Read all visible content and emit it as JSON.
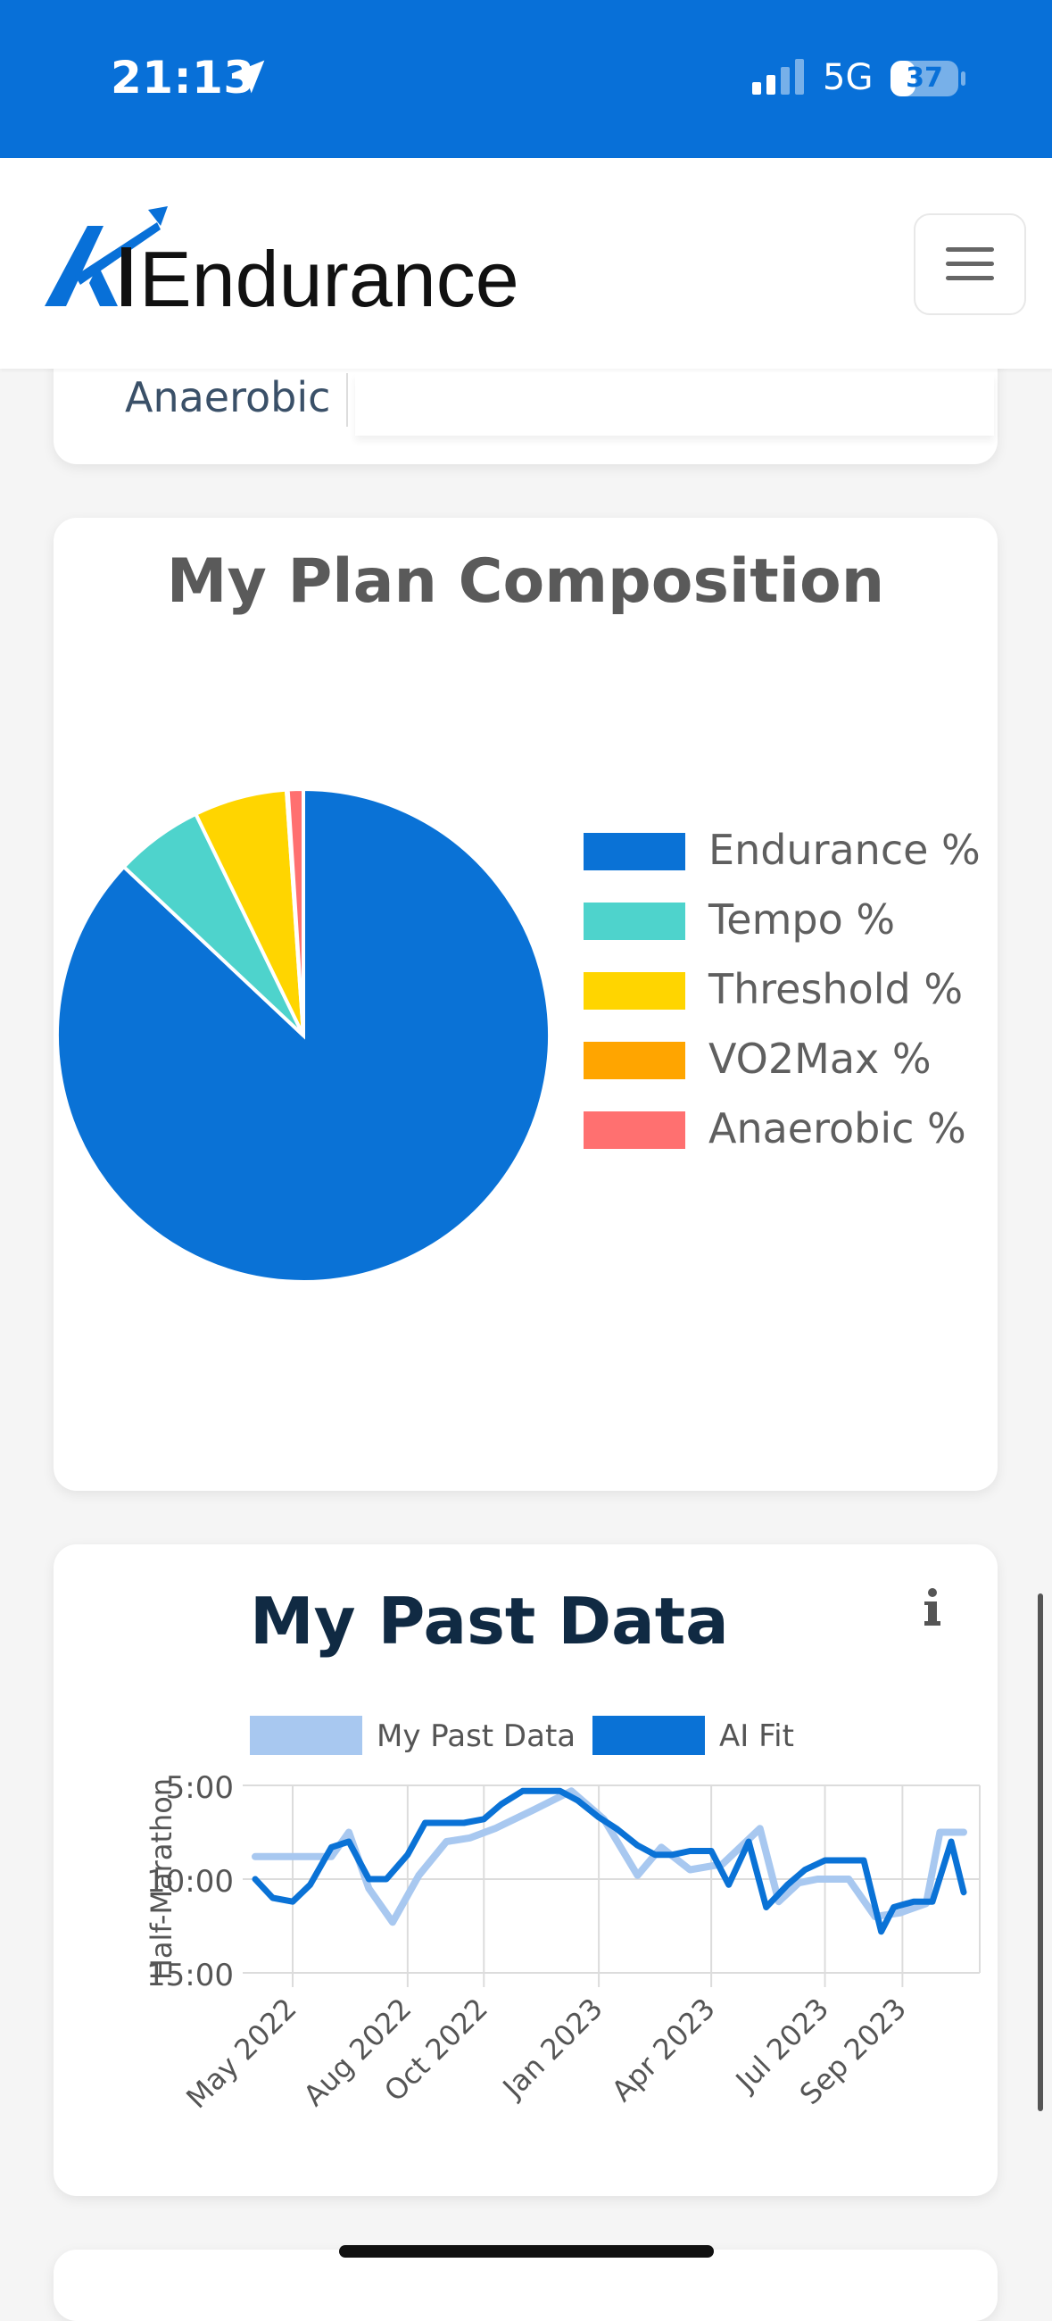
{
  "status_bar": {
    "time": "21:13",
    "network": "5G",
    "battery": "37",
    "battery_level": 0.37,
    "icons": [
      "location-arrow-icon",
      "signal-icon",
      "battery-icon"
    ]
  },
  "navbar": {
    "logo_text": "AIEndurance",
    "menu_icon": "hamburger-icon"
  },
  "previous_card": {
    "label": "Anaerobic"
  },
  "plan_composition": {
    "title": "My Plan Composition",
    "chart_data": {
      "type": "pie",
      "categories": [
        "Endurance %",
        "Tempo %",
        "Threshold %",
        "VO2Max %",
        "Anaerobic %"
      ],
      "values": [
        87,
        5.8,
        6.1,
        0.1,
        1.0
      ],
      "colors": [
        "#0a72d6",
        "#4ed3cc",
        "#ffd500",
        "#ffa500",
        "#ff7070"
      ],
      "legend_position": "right"
    }
  },
  "past_data": {
    "title": "My Past Data",
    "info_icon": "info-icon",
    "chart_data": {
      "type": "line",
      "ylabel": "Half-Marathon",
      "y_ticks": [
        "5:00",
        "10:00",
        "15:00"
      ],
      "ylim_minutes": [
        5,
        15
      ],
      "y_reversed": true,
      "x_ticks": [
        "May 2022",
        "Aug 2022",
        "Oct 2022",
        "Jan 2023",
        "Apr 2023",
        "Jul 2023",
        "Sep 2023"
      ],
      "x_tick_dates": [
        "2022-05-01",
        "2022-08-01",
        "2022-10-01",
        "2023-01-01",
        "2023-04-01",
        "2023-07-01",
        "2023-09-01"
      ],
      "xlim": [
        "2022-04-01",
        "2023-10-20"
      ],
      "legend": "top",
      "grid": true,
      "series": [
        {
          "name": "My Past Data",
          "color": "#a8c8f0",
          "x": [
            "2022-04-01",
            "2022-05-01",
            "2022-06-01",
            "2022-06-15",
            "2022-07-01",
            "2022-07-20",
            "2022-08-10",
            "2022-09-01",
            "2022-09-20",
            "2022-10-10",
            "2022-11-10",
            "2022-12-10",
            "2023-01-05",
            "2023-02-01",
            "2023-02-20",
            "2023-03-15",
            "2023-04-10",
            "2023-05-10",
            "2023-05-25",
            "2023-06-10",
            "2023-06-25",
            "2023-07-20",
            "2023-08-10",
            "2023-08-30",
            "2023-09-20",
            "2023-10-01",
            "2023-10-20"
          ],
          "values": [
            8.8,
            8.8,
            8.8,
            7.5,
            10.5,
            12.3,
            9.8,
            8.0,
            7.8,
            7.3,
            6.3,
            5.3,
            6.8,
            9.8,
            8.3,
            9.5,
            9.2,
            7.3,
            11.2,
            10.2,
            10.0,
            10.0,
            12.0,
            11.8,
            11.3,
            7.5,
            7.5
          ]
        },
        {
          "name": "AI Fit",
          "color": "#0a72d6",
          "x": [
            "2022-04-01",
            "2022-04-15",
            "2022-05-01",
            "2022-05-15",
            "2022-06-01",
            "2022-06-15",
            "2022-07-01",
            "2022-07-15",
            "2022-08-01",
            "2022-08-15",
            "2022-09-01",
            "2022-09-15",
            "2022-10-01",
            "2022-10-15",
            "2022-11-01",
            "2022-11-15",
            "2022-12-01",
            "2022-12-15",
            "2023-01-01",
            "2023-01-15",
            "2023-02-01",
            "2023-02-15",
            "2023-03-01",
            "2023-03-15",
            "2023-04-01",
            "2023-04-15",
            "2023-05-01",
            "2023-05-15",
            "2023-06-01",
            "2023-06-15",
            "2023-07-01",
            "2023-07-15",
            "2023-08-01",
            "2023-08-15",
            "2023-08-25",
            "2023-09-10",
            "2023-09-25",
            "2023-10-10",
            "2023-10-20"
          ],
          "values": [
            10.0,
            11.0,
            11.2,
            10.3,
            8.3,
            8.0,
            10.0,
            10.0,
            8.7,
            7.0,
            7.0,
            7.0,
            6.8,
            6.0,
            5.3,
            5.3,
            5.3,
            5.8,
            6.7,
            7.3,
            8.2,
            8.7,
            8.7,
            8.5,
            8.5,
            10.3,
            8.0,
            11.5,
            10.3,
            9.5,
            9.0,
            9.0,
            9.0,
            12.8,
            11.5,
            11.2,
            11.2,
            8.0,
            10.7
          ]
        }
      ]
    }
  }
}
